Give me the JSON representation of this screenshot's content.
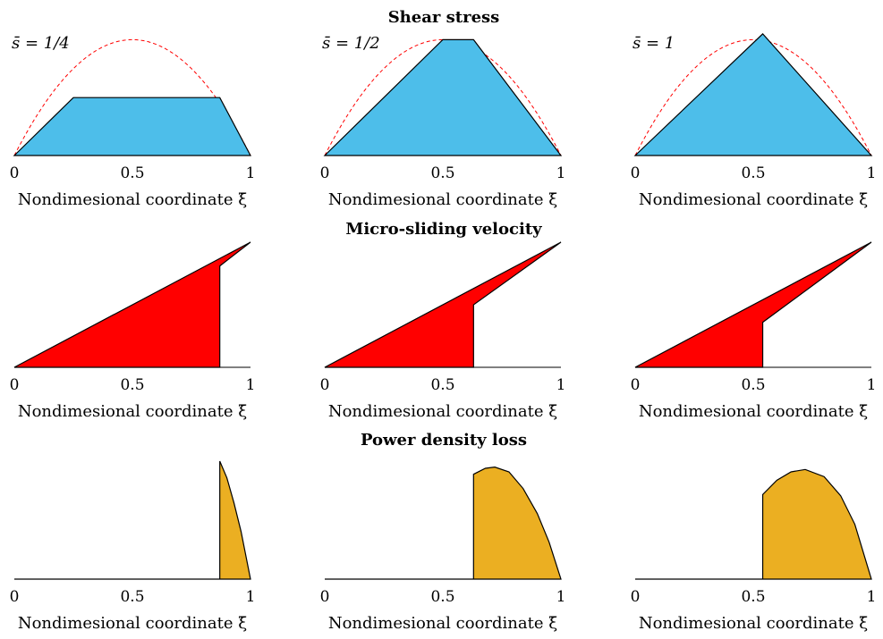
{
  "figure": {
    "row_titles": [
      "Shear stress",
      "Micro-sliding velocity",
      "Power density loss"
    ],
    "xlabel": "Nondimesional coordinate ξ̄",
    "xticks": [
      "0",
      "0.5",
      "1"
    ],
    "column_labels": [
      "s̄ = 1/4",
      "s̄ = 1/2",
      "s̄ = 1"
    ]
  },
  "colors": {
    "shear_fill": "#4DBEEA",
    "velocity_fill": "#FF0000",
    "power_fill": "#EBAF22",
    "envelope": "#FF0000",
    "outline": "#000000"
  },
  "chart_data": [
    {
      "type": "area",
      "row": "Shear stress",
      "panel": "s̄ = 1/4",
      "xlim": [
        0,
        1
      ],
      "ylim": [
        0,
        1.08
      ],
      "envelope": "dashed red parabola 4ξ(1−ξ)",
      "series": [
        {
          "x": [
            0,
            0.25,
            0.87,
            1
          ],
          "values": [
            0,
            0.5,
            0.5,
            0
          ]
        }
      ]
    },
    {
      "type": "area",
      "row": "Shear stress",
      "panel": "s̄ = 1/2",
      "xlim": [
        0,
        1
      ],
      "ylim": [
        0,
        1.08
      ],
      "envelope": "dashed red parabola 4ξ(1−ξ)",
      "series": [
        {
          "x": [
            0,
            0.5,
            0.63,
            1
          ],
          "values": [
            0,
            1.0,
            1.0,
            0
          ]
        }
      ]
    },
    {
      "type": "area",
      "row": "Shear stress",
      "panel": "s̄ = 1",
      "xlim": [
        0,
        1
      ],
      "ylim": [
        0,
        1.08
      ],
      "envelope": "dashed red parabola 4ξ(1−ξ)",
      "series": [
        {
          "x": [
            0,
            0.54,
            1
          ],
          "values": [
            0,
            1.05,
            0
          ]
        }
      ]
    },
    {
      "type": "area",
      "row": "Micro-sliding velocity",
      "panel": "s̄ = 1/4",
      "xlim": [
        0,
        1
      ],
      "ylim": [
        0,
        1
      ],
      "series": [
        {
          "x": [
            0,
            0.87,
            0.87,
            1
          ],
          "values": [
            0,
            0,
            0.81,
            1.0
          ]
        }
      ]
    },
    {
      "type": "area",
      "row": "Micro-sliding velocity",
      "panel": "s̄ = 1/2",
      "xlim": [
        0,
        1
      ],
      "ylim": [
        0,
        1
      ],
      "series": [
        {
          "x": [
            0,
            0.63,
            0.63,
            1
          ],
          "values": [
            0,
            0,
            0.5,
            1.0
          ]
        }
      ]
    },
    {
      "type": "area",
      "row": "Micro-sliding velocity",
      "panel": "s̄ = 1",
      "xlim": [
        0,
        1
      ],
      "ylim": [
        0,
        1
      ],
      "series": [
        {
          "x": [
            0,
            0.54,
            0.54,
            1
          ],
          "values": [
            0,
            0,
            0.36,
            1.0
          ]
        }
      ]
    },
    {
      "type": "area",
      "row": "Power density loss",
      "panel": "s̄ = 1/4",
      "xlim": [
        0,
        1
      ],
      "ylim": [
        0,
        1.05
      ],
      "series": [
        {
          "x": [
            0,
            0.87,
            0.87,
            0.9,
            0.93,
            0.96,
            1
          ],
          "values": [
            0,
            0,
            0.99,
            0.85,
            0.64,
            0.4,
            0
          ]
        }
      ]
    },
    {
      "type": "area",
      "row": "Power density loss",
      "panel": "s̄ = 1/2",
      "xlim": [
        0,
        1
      ],
      "ylim": [
        0,
        1.05
      ],
      "series": [
        {
          "x": [
            0,
            0.63,
            0.63,
            0.68,
            0.72,
            0.78,
            0.84,
            0.9,
            0.95,
            1
          ],
          "values": [
            0,
            0,
            0.88,
            0.93,
            0.94,
            0.9,
            0.76,
            0.55,
            0.31,
            0
          ]
        }
      ]
    },
    {
      "type": "area",
      "row": "Power density loss",
      "panel": "s̄ = 1",
      "xlim": [
        0,
        1
      ],
      "ylim": [
        0,
        1.05
      ],
      "series": [
        {
          "x": [
            0,
            0.54,
            0.54,
            0.6,
            0.66,
            0.72,
            0.8,
            0.87,
            0.93,
            1
          ],
          "values": [
            0,
            0,
            0.71,
            0.83,
            0.9,
            0.92,
            0.86,
            0.7,
            0.46,
            0
          ]
        }
      ]
    }
  ]
}
